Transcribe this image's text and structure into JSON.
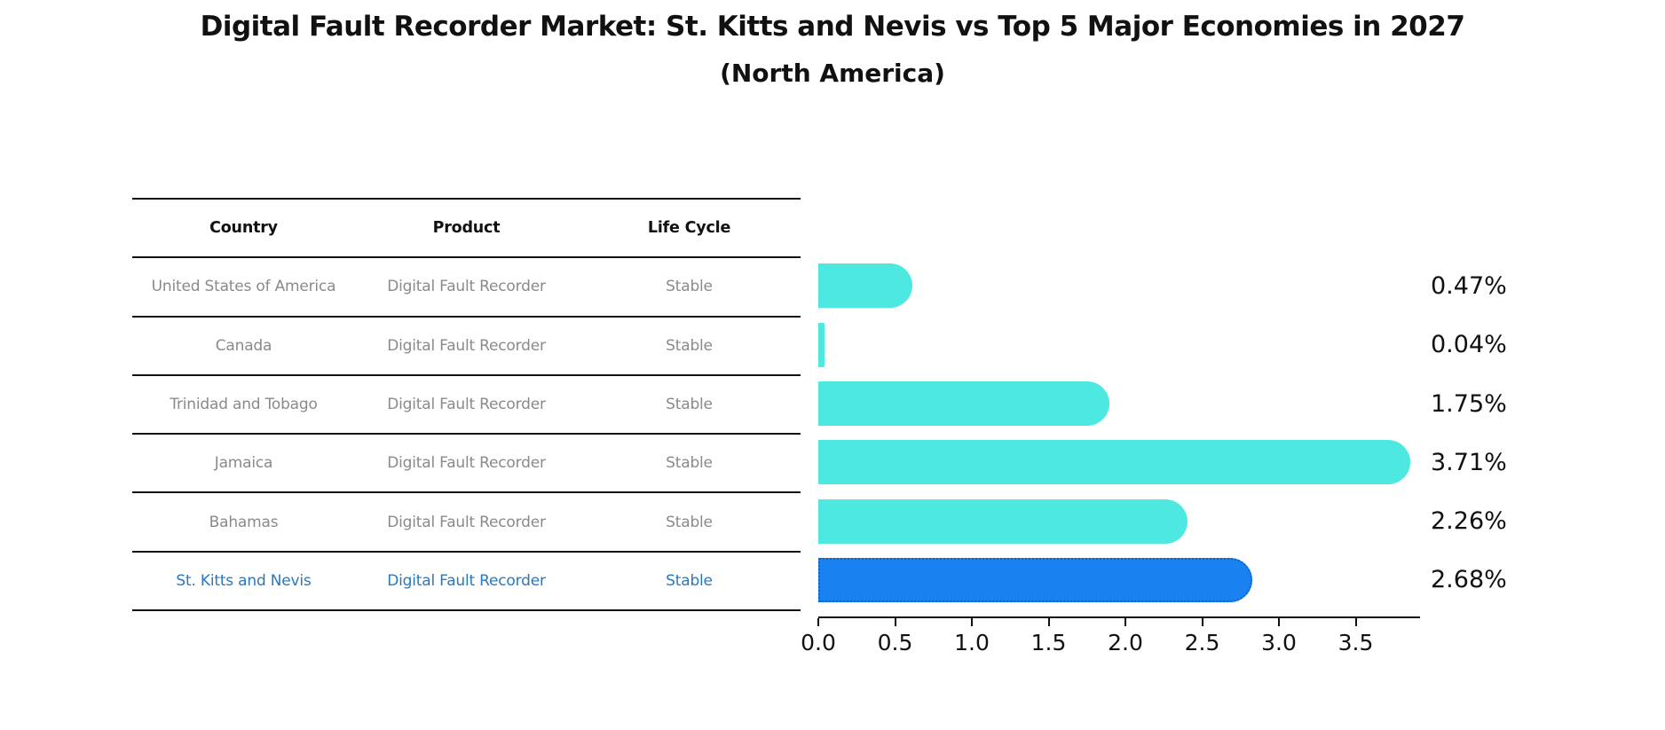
{
  "title": "Digital Fault Recorder Market: St. Kitts and Nevis vs Top 5 Major Economies in 2027",
  "subtitle": "(North America)",
  "table": {
    "headers": [
      "Country",
      "Product",
      "Life Cycle"
    ],
    "rows": [
      {
        "country": "United States of America",
        "product": "Digital Fault Recorder",
        "life_cycle": "Stable"
      },
      {
        "country": "Canada",
        "product": "Digital Fault Recorder",
        "life_cycle": "Stable"
      },
      {
        "country": "Trinidad and Tobago",
        "product": "Digital Fault Recorder",
        "life_cycle": "Stable"
      },
      {
        "country": "Jamaica",
        "product": "Digital Fault Recorder",
        "life_cycle": "Stable"
      },
      {
        "country": "Bahamas",
        "product": "Digital Fault Recorder",
        "life_cycle": "Stable"
      },
      {
        "country": "St. Kitts and Nevis",
        "product": "Digital Fault Recorder",
        "life_cycle": "Stable"
      }
    ],
    "highlighted_row": "St. Kitts and Nevis"
  },
  "chart_data": {
    "type": "bar",
    "orientation": "horizontal",
    "title": "Digital Fault Recorder Market: St. Kitts and Nevis vs Top 5 Major Economies in 2027 (North America)",
    "categories": [
      "United States of America",
      "Canada",
      "Trinidad and Tobago",
      "Jamaica",
      "Bahamas",
      "St. Kitts and Nevis"
    ],
    "values": [
      0.47,
      0.04,
      1.75,
      3.71,
      2.26,
      2.68
    ],
    "value_labels": [
      "0.47%",
      "0.04%",
      "1.75%",
      "3.71%",
      "2.26%",
      "2.68%"
    ],
    "x_ticks": [
      "0.0",
      "0.5",
      "1.0",
      "1.5",
      "2.0",
      "2.5",
      "3.0",
      "3.5"
    ],
    "xlim": [
      0,
      3.9
    ],
    "grid": "off",
    "legend": "none",
    "highlight_index": 5,
    "bar_color": "#4DE9E0",
    "highlight_bar_color": "#1A82F0",
    "highlight_border_color": "#1062C8",
    "highlight_text_color": "#2878BE"
  }
}
